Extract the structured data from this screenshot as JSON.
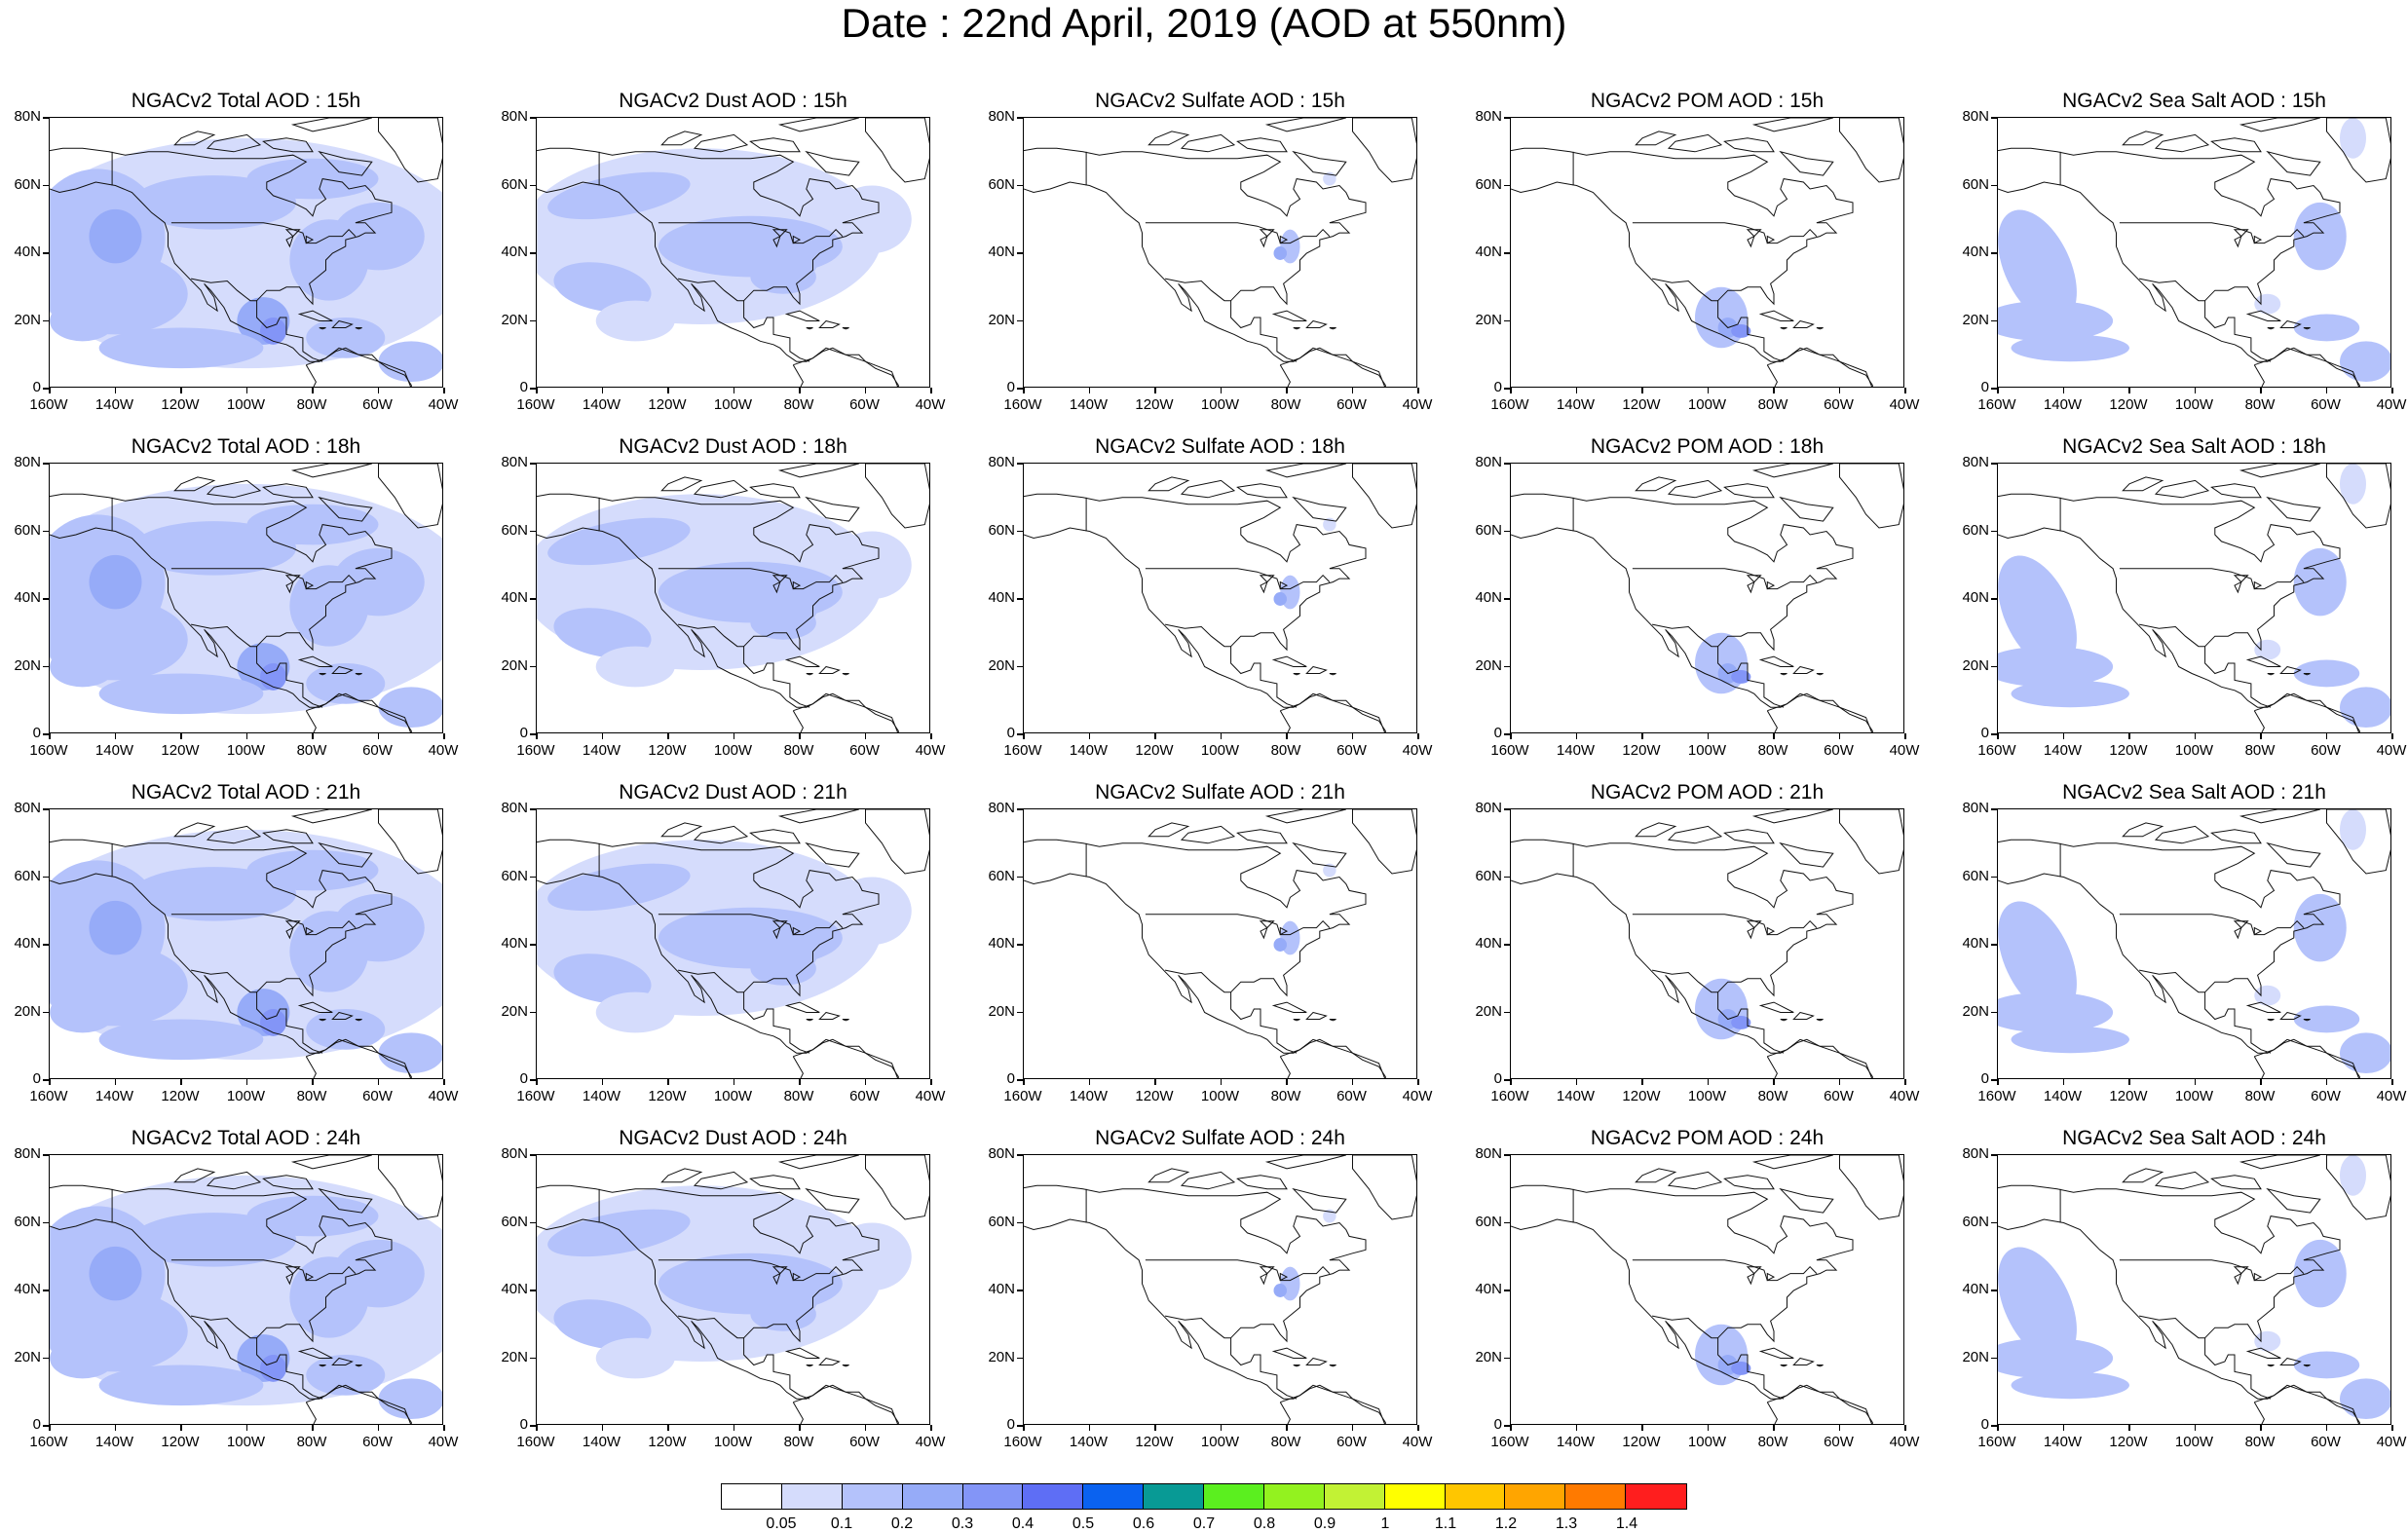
{
  "title": "Date : 22nd April, 2019 (AOD at 550nm)",
  "panels": [
    [
      "NGACv2 Total AOD : 15h",
      "NGACv2 Dust AOD : 15h",
      "NGACv2 Sulfate AOD : 15h",
      "NGACv2 POM AOD : 15h",
      "NGACv2 Sea Salt AOD : 15h"
    ],
    [
      "NGACv2 Total AOD : 18h",
      "NGACv2 Dust AOD : 18h",
      "NGACv2 Sulfate AOD : 18h",
      "NGACv2 POM AOD : 18h",
      "NGACv2 Sea Salt AOD : 18h"
    ],
    [
      "NGACv2 Total AOD : 21h",
      "NGACv2 Dust AOD : 21h",
      "NGACv2 Sulfate AOD : 21h",
      "NGACv2 POM AOD : 21h",
      "NGACv2 Sea Salt AOD : 21h"
    ],
    [
      "NGACv2 Total AOD : 24h",
      "NGACv2 Dust AOD : 24h",
      "NGACv2 Sulfate AOD : 24h",
      "NGACv2 POM AOD : 24h",
      "NGACv2 Sea Salt  AOD : 24h"
    ]
  ],
  "lat_labels": [
    "80N",
    "60N",
    "40N",
    "20N",
    "0"
  ],
  "lon_labels": [
    "160W",
    "140W",
    "120W",
    "100W",
    "80W",
    "60W",
    "40W"
  ],
  "fields": [
    "total",
    "dust",
    "sulfate",
    "pom",
    "seasalt"
  ],
  "colorbar": {
    "colors": [
      "#ffffff",
      "#d5dcfc",
      "#b4c2fb",
      "#96abf8",
      "#8395f7",
      "#5e6ef5",
      "#0a62f0",
      "#089a95",
      "#5bef1f",
      "#93f21f",
      "#c2f234",
      "#ffff00",
      "#ffc600",
      "#ffa500",
      "#ff7a00",
      "#ff1e1e"
    ],
    "labels": [
      "0.05",
      "0.1",
      "0.2",
      "0.3",
      "0.4",
      "0.5",
      "0.6",
      "0.7",
      "0.8",
      "0.9",
      "1",
      "1.1",
      "1.2",
      "1.3",
      "1.4"
    ]
  }
}
